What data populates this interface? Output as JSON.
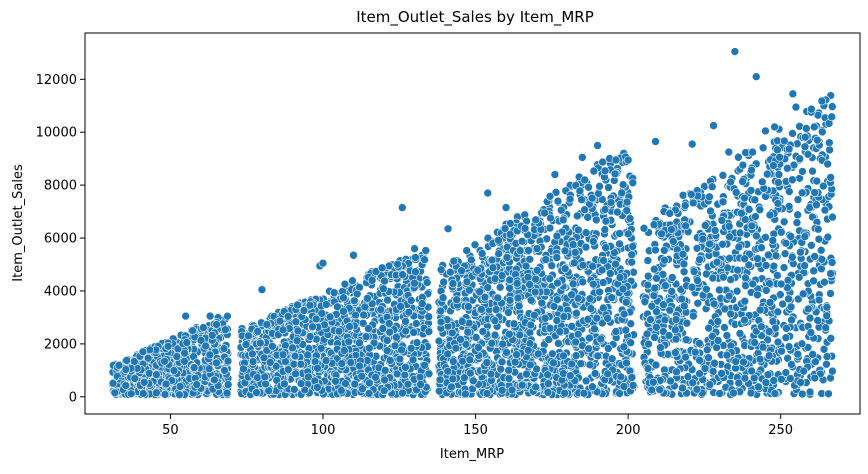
{
  "chart_data": {
    "type": "scatter",
    "title": "Item_Outlet_Sales by Item_MRP",
    "xlabel": "Item_MRP",
    "ylabel": "Item_Outlet_Sales",
    "xlim": [
      22,
      276
    ],
    "ylim": [
      -650,
      13750
    ],
    "x_ticks": [
      50,
      100,
      150,
      200,
      250
    ],
    "y_ticks": [
      0,
      2000,
      4000,
      6000,
      8000,
      10000,
      12000
    ],
    "x_tick_labels": [
      "50",
      "100",
      "150",
      "200",
      "250"
    ],
    "y_tick_labels": [
      "0",
      "2000",
      "4000",
      "6000",
      "8000",
      "10000",
      "12000"
    ],
    "grid": false,
    "legend": "none",
    "color": "#1f77b4",
    "clusters": [
      {
        "x_range": [
          31,
          69
        ],
        "y_max_range": [
          1100,
          3100
        ]
      },
      {
        "x_range": [
          73,
          135
        ],
        "y_max_range": [
          2500,
          5600
        ]
      },
      {
        "x_range": [
          138,
          202
        ],
        "y_max_range": [
          4800,
          9600
        ]
      },
      {
        "x_range": [
          205,
          267
        ],
        "y_max_range": [
          6500,
          11500
        ]
      }
    ],
    "highlighted_points": [
      {
        "x": 41,
        "y": 1700
      },
      {
        "x": 55,
        "y": 3050
      },
      {
        "x": 63,
        "y": 3050
      },
      {
        "x": 80,
        "y": 4050
      },
      {
        "x": 99,
        "y": 4950
      },
      {
        "x": 100,
        "y": 5050
      },
      {
        "x": 110,
        "y": 5350
      },
      {
        "x": 126,
        "y": 7150
      },
      {
        "x": 130,
        "y": 5600
      },
      {
        "x": 141,
        "y": 6350
      },
      {
        "x": 154,
        "y": 7700
      },
      {
        "x": 160,
        "y": 7150
      },
      {
        "x": 176,
        "y": 8400
      },
      {
        "x": 185,
        "y": 9050
      },
      {
        "x": 190,
        "y": 9500
      },
      {
        "x": 196,
        "y": 8950
      },
      {
        "x": 200,
        "y": 8950
      },
      {
        "x": 209,
        "y": 9650
      },
      {
        "x": 221,
        "y": 9550
      },
      {
        "x": 228,
        "y": 10250
      },
      {
        "x": 233,
        "y": 9250
      },
      {
        "x": 235,
        "y": 13050
      },
      {
        "x": 242,
        "y": 12100
      },
      {
        "x": 245,
        "y": 10050
      },
      {
        "x": 248,
        "y": 10200
      },
      {
        "x": 254,
        "y": 11450
      },
      {
        "x": 255,
        "y": 10950
      },
      {
        "x": 261,
        "y": 10200
      },
      {
        "x": 262,
        "y": 9700
      }
    ]
  }
}
